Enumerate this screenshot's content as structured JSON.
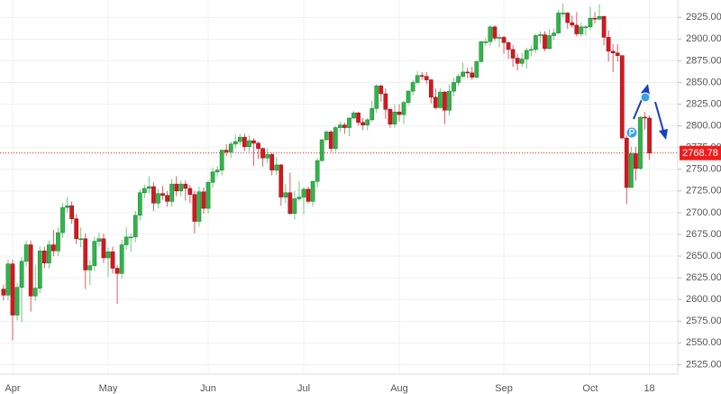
{
  "chart_data": {
    "type": "candlestick",
    "categories": [
      null,
      null,
      "Apr",
      null,
      null,
      null,
      null,
      null,
      null,
      null,
      null,
      null,
      null,
      null,
      null,
      null,
      null,
      null,
      null,
      null,
      null,
      null,
      null,
      "May",
      null,
      null,
      null,
      null,
      null,
      null,
      null,
      null,
      null,
      null,
      null,
      null,
      null,
      null,
      null,
      null,
      null,
      null,
      null,
      null,
      null,
      "Jun",
      null,
      null,
      null,
      null,
      null,
      null,
      null,
      null,
      null,
      null,
      null,
      null,
      null,
      null,
      null,
      null,
      null,
      null,
      null,
      null,
      "Jul",
      null,
      null,
      null,
      null,
      null,
      null,
      null,
      null,
      null,
      null,
      null,
      null,
      null,
      null,
      null,
      null,
      null,
      null,
      null,
      null,
      "Aug",
      null,
      null,
      null,
      null,
      null,
      null,
      null,
      null,
      null,
      null,
      null,
      null,
      null,
      null,
      null,
      null,
      null,
      null,
      null,
      null,
      null,
      null,
      "Sep",
      null,
      null,
      null,
      null,
      null,
      null,
      null,
      null,
      null,
      null,
      null,
      null,
      null,
      null,
      null,
      null,
      null,
      null,
      "Oct",
      null,
      null,
      null,
      null,
      null,
      null,
      null,
      null,
      null,
      null,
      null,
      null,
      "18"
    ],
    "open": [
      2612,
      2605,
      2641,
      2582,
      2614,
      2644,
      2663,
      2604,
      2613,
      2656,
      2642,
      2663,
      2656,
      2677,
      2706,
      2708,
      2693,
      2670,
      2670,
      2634,
      2639,
      2667,
      2670,
      2648,
      2655,
      2636,
      2630,
      2663,
      2672,
      2672,
      2697,
      2723,
      2728,
      2730,
      2711,
      2722,
      2720,
      2713,
      2733,
      2725,
      2733,
      2728,
      2721,
      2690,
      2724,
      2705,
      2735,
      2747,
      2749,
      2772,
      2770,
      2779,
      2782,
      2787,
      2776,
      2783,
      2780,
      2774,
      2763,
      2767,
      2749,
      2755,
      2718,
      2723,
      2699,
      2716,
      2718,
      2727,
      2713,
      2736,
      2760,
      2784,
      2793,
      2774,
      2798,
      2801,
      2798,
      2809,
      2815,
      2804,
      2801,
      2807,
      2820,
      2846,
      2837,
      2819,
      2802,
      2816,
      2813,
      2827,
      2840,
      2850,
      2858,
      2857,
      2853,
      2833,
      2821,
      2839,
      2818,
      2840,
      2850,
      2857,
      2862,
      2861,
      2856,
      2874,
      2897,
      2897,
      2914,
      2901,
      2902,
      2896,
      2888,
      2878,
      2872,
      2877,
      2887,
      2888,
      2904,
      2905,
      2889,
      2904,
      2907,
      2930,
      2930,
      2919,
      2916,
      2906,
      2914,
      2914,
      2924,
      2923,
      2926,
      2902,
      2886,
      2884,
      2881,
      2786,
      2729,
      2768,
      2751,
      2810,
      2809
    ],
    "high": [
      2617,
      2646,
      2646,
      2619,
      2649,
      2668,
      2668,
      2640,
      2661,
      2661,
      2668,
      2680,
      2683,
      2711,
      2718,
      2713,
      2698,
      2683,
      2676,
      2645,
      2672,
      2677,
      2676,
      2660,
      2661,
      2640,
      2669,
      2683,
      2676,
      2702,
      2727,
      2732,
      2742,
      2735,
      2727,
      2731,
      2725,
      2739,
      2742,
      2737,
      2737,
      2732,
      2725,
      2730,
      2729,
      2737,
      2752,
      2754,
      2773,
      2779,
      2782,
      2790,
      2791,
      2791,
      2789,
      2786,
      2782,
      2775,
      2774,
      2769,
      2764,
      2756,
      2733,
      2746,
      2725,
      2736,
      2729,
      2730,
      2737,
      2763,
      2785,
      2795,
      2795,
      2800,
      2805,
      2804,
      2810,
      2817,
      2816,
      2809,
      2809,
      2829,
      2848,
      2848,
      2843,
      2821,
      2825,
      2825,
      2829,
      2841,
      2853,
      2863,
      2862,
      2862,
      2854,
      2843,
      2843,
      2840,
      2848,
      2855,
      2860,
      2873,
      2867,
      2868,
      2876,
      2898,
      2901,
      2916,
      2916,
      2906,
      2904,
      2897,
      2893,
      2883,
      2884,
      2890,
      2893,
      2906,
      2909,
      2909,
      2911,
      2912,
      2934,
      2941,
      2931,
      2927,
      2931,
      2919,
      2916,
      2937,
      2931,
      2940,
      2927,
      2910,
      2894,
      2894,
      2881,
      2795,
      2776,
      2776,
      2811,
      2816,
      2812
    ],
    "low": [
      2599,
      2599,
      2553,
      2576,
      2574,
      2638,
      2586,
      2598,
      2607,
      2636,
      2636,
      2650,
      2650,
      2671,
      2700,
      2687,
      2664,
      2660,
      2612,
      2617,
      2633,
      2661,
      2642,
      2626,
      2630,
      2595,
      2624,
      2657,
      2655,
      2666,
      2691,
      2717,
      2722,
      2702,
      2705,
      2715,
      2707,
      2707,
      2719,
      2719,
      2714,
      2711,
      2676,
      2684,
      2699,
      2699,
      2729,
      2741,
      2743,
      2765,
      2763,
      2774,
      2778,
      2771,
      2770,
      2754,
      2762,
      2753,
      2757,
      2743,
      2743,
      2708,
      2711,
      2698,
      2692,
      2713,
      2698,
      2711,
      2707,
      2729,
      2759,
      2783,
      2770,
      2770,
      2793,
      2791,
      2788,
      2808,
      2800,
      2795,
      2795,
      2805,
      2815,
      2828,
      2808,
      2798,
      2798,
      2805,
      2802,
      2824,
      2835,
      2848,
      2853,
      2848,
      2826,
      2819,
      2820,
      2802,
      2812,
      2834,
      2846,
      2855,
      2855,
      2853,
      2855,
      2873,
      2892,
      2892,
      2898,
      2891,
      2883,
      2877,
      2868,
      2864,
      2868,
      2866,
      2880,
      2884,
      2895,
      2886,
      2888,
      2899,
      2906,
      2925,
      2912,
      2913,
      2903,
      2903,
      2904,
      2910,
      2918,
      2922,
      2893,
      2874,
      2862,
      2874,
      2785,
      2710,
      2729,
      2737,
      2749,
      2796,
      2761
    ],
    "close": [
      2605,
      2641,
      2582,
      2614,
      2644,
      2663,
      2604,
      2613,
      2656,
      2642,
      2663,
      2656,
      2677,
      2706,
      2708,
      2693,
      2670,
      2670,
      2634,
      2639,
      2667,
      2670,
      2648,
      2655,
      2636,
      2630,
      2663,
      2672,
      2672,
      2697,
      2723,
      2728,
      2730,
      2711,
      2722,
      2720,
      2713,
      2733,
      2725,
      2733,
      2728,
      2721,
      2690,
      2724,
      2705,
      2735,
      2747,
      2749,
      2772,
      2770,
      2779,
      2782,
      2787,
      2776,
      2783,
      2780,
      2774,
      2763,
      2767,
      2749,
      2755,
      2718,
      2723,
      2699,
      2716,
      2718,
      2727,
      2713,
      2736,
      2760,
      2784,
      2793,
      2774,
      2798,
      2801,
      2798,
      2809,
      2815,
      2804,
      2801,
      2807,
      2820,
      2846,
      2837,
      2819,
      2802,
      2816,
      2813,
      2827,
      2840,
      2850,
      2858,
      2857,
      2853,
      2833,
      2821,
      2839,
      2818,
      2840,
      2850,
      2857,
      2862,
      2861,
      2856,
      2874,
      2897,
      2897,
      2914,
      2901,
      2902,
      2896,
      2888,
      2878,
      2872,
      2877,
      2887,
      2888,
      2904,
      2905,
      2889,
      2904,
      2907,
      2930,
      2930,
      2919,
      2916,
      2906,
      2914,
      2914,
      2924,
      2923,
      2926,
      2902,
      2886,
      2884,
      2881,
      2786,
      2729,
      2768,
      2751,
      2810,
      2809,
      2768.78
    ],
    "up_color": "#2fb64a",
    "down_color": "#d4181f",
    "last_price": 2768.78,
    "last_price_color": "#f01c1c",
    "ylim": [
      2514,
      2945
    ],
    "yticks": [
      {
        "value": 2525,
        "label": "2525.00"
      },
      {
        "value": 2550,
        "label": "2550.00"
      },
      {
        "value": 2575,
        "label": "2575.00"
      },
      {
        "value": 2600,
        "label": "2600.00"
      },
      {
        "value": 2625,
        "label": "2625.00"
      },
      {
        "value": 2650,
        "label": "2650.00"
      },
      {
        "value": 2675,
        "label": "2675.00"
      },
      {
        "value": 2700,
        "label": "2700.00"
      },
      {
        "value": 2725,
        "label": "2725.00"
      },
      {
        "value": 2750,
        "label": "2750.00"
      },
      {
        "value": 2775,
        "label": "2775.00"
      },
      {
        "value": 2800,
        "label": "2800.00"
      },
      {
        "value": 2825,
        "label": "2825.00"
      },
      {
        "value": 2850,
        "label": "2850.00"
      },
      {
        "value": 2875,
        "label": "2875.00"
      },
      {
        "value": 2900,
        "label": "2900.00"
      },
      {
        "value": 2925,
        "label": "2925.00"
      }
    ],
    "grid": true
  }
}
